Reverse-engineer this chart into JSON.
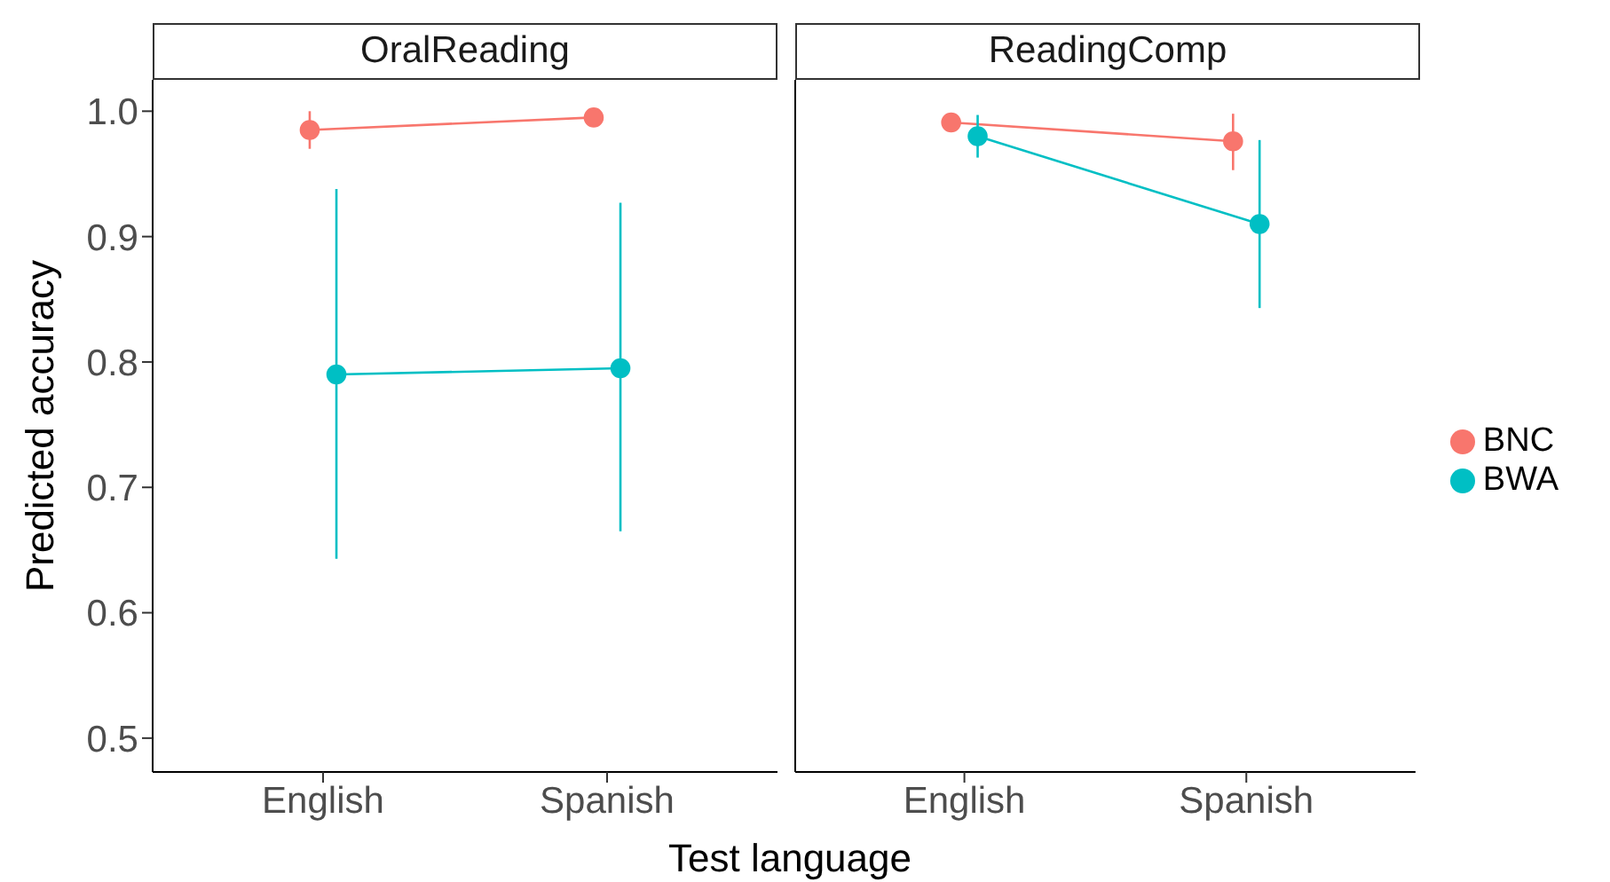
{
  "chart_data": [
    {
      "type": "line",
      "title": "OralReading",
      "xlabel": "Test language",
      "ylabel": "Predicted accuracy",
      "categories": [
        "English",
        "Spanish"
      ],
      "ylim": [
        0.473,
        1.025
      ],
      "yticks": [
        0.5,
        0.6,
        0.7,
        0.8,
        0.9,
        {
          "value": 1,
          "label": "1.0"
        }
      ],
      "marker": "circle",
      "series": [
        {
          "color": "#f8766d",
          "values": [
            0.985,
            0.995
          ],
          "errors": [
            [
              0.97,
              1.0
            ],
            [
              0.99,
              0.999
            ]
          ]
        },
        {
          "color": "#00bfc4",
          "values": [
            0.79,
            0.795
          ],
          "errors": [
            [
              0.643,
              0.938
            ],
            [
              0.665,
              0.927
            ]
          ]
        }
      ]
    },
    {
      "type": "line",
      "title": "ReadingComp",
      "categories": [
        "English",
        "Spanish"
      ],
      "ylim": [
        0.473,
        1.025
      ],
      "yticks": [
        0.5,
        0.6,
        0.7,
        0.8,
        0.9,
        1
      ],
      "tick_labels": "x",
      "marker": "circle",
      "legend": "right",
      "series": [
        {
          "name": "BNC",
          "color": "#f8766d",
          "values": [
            0.991,
            0.976
          ],
          "errors": [
            [
              0.984,
              0.998
            ],
            [
              0.953,
              0.998
            ]
          ]
        },
        {
          "name": "BWA",
          "color": "#00bfc4",
          "values": [
            0.98,
            0.91
          ],
          "errors": [
            [
              0.963,
              0.997
            ],
            [
              0.843,
              0.977
            ]
          ]
        }
      ]
    }
  ]
}
